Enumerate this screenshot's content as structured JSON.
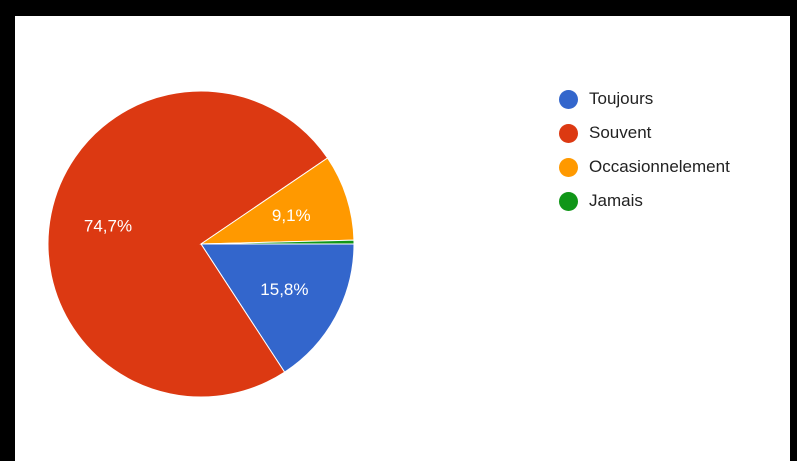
{
  "chart_data": {
    "type": "pie",
    "categories": [
      "Toujours",
      "Souvent",
      "Occasionnelement",
      "Jamais"
    ],
    "values": [
      15.8,
      74.7,
      9.1,
      0.4
    ],
    "labels": [
      "15,8%",
      "74,7%",
      "9,1%",
      ""
    ],
    "colors": [
      "#3366cc",
      "#dc3912",
      "#ff9900",
      "#109618"
    ],
    "legend_position": "right"
  }
}
